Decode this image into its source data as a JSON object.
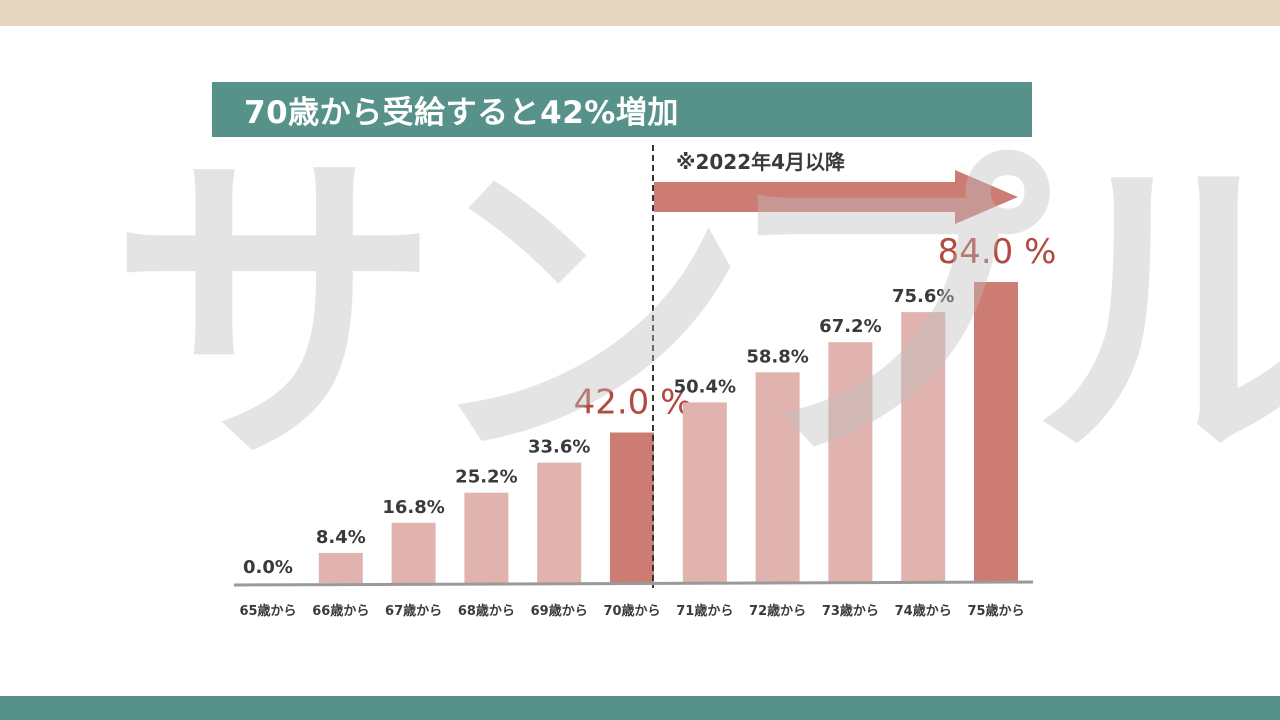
{
  "header": {
    "title": "70歳から受給すると42%増加",
    "note": "※2022年4月以降"
  },
  "watermark": "サンプル",
  "colors": {
    "top_band": "#e5d6c1",
    "bottom_band": "#56918a",
    "title_bg": "#56918a",
    "bar_light": "#e0b3ae",
    "bar_highlight": "#cd7c74",
    "arrow": "#cd7c74",
    "highlight_label": "#b24a42",
    "baseline": "#9a9a9a",
    "divider": "#333333"
  },
  "chart_data": {
    "type": "bar",
    "categories": [
      "65歳から",
      "66歳から",
      "67歳から",
      "68歳から",
      "69歳から",
      "70歳から",
      "71歳から",
      "72歳から",
      "73歳から",
      "74歳から",
      "75歳から"
    ],
    "values": [
      0.0,
      8.4,
      16.8,
      25.2,
      33.6,
      42.0,
      50.4,
      58.8,
      67.2,
      75.6,
      84.0
    ],
    "labels": [
      "0.0%",
      "8.4%",
      "16.8%",
      "25.2%",
      "33.6%",
      "42.0 %",
      "50.4%",
      "58.8%",
      "67.2%",
      "75.6%",
      "84.0 %"
    ],
    "highlighted": [
      "70歳から",
      "75歳から"
    ],
    "ylim": [
      0,
      84
    ],
    "title": "",
    "xlabel": "",
    "ylabel": "",
    "grid": false,
    "legend": "none"
  }
}
